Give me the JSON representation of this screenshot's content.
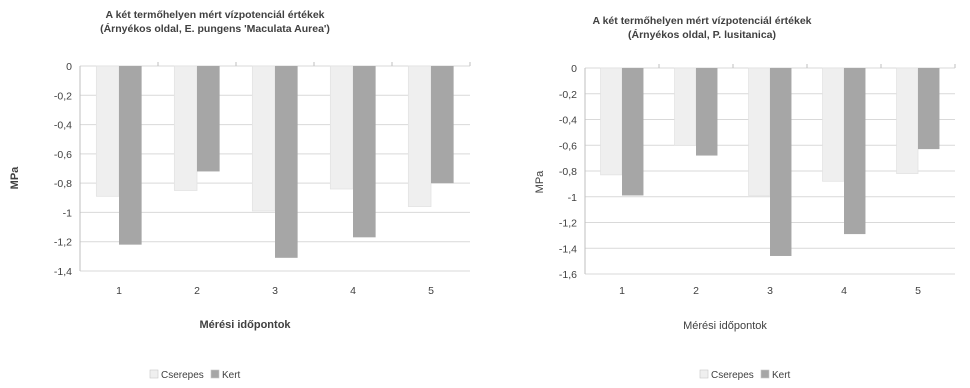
{
  "chart_data": [
    {
      "type": "bar",
      "title_line1": "A két termőhelyen mért vízpotenciál értékek",
      "title_line2": "(Árnyékos oldal, E. pungens 'Maculata Aurea')",
      "xlabel": "Mérési időpontok",
      "ylabel": "MPa",
      "categories": [
        "1",
        "2",
        "3",
        "4",
        "5"
      ],
      "y_ticks": [
        0,
        -0.2,
        -0.4,
        -0.6,
        -0.8,
        -1,
        -1.2,
        -1.4
      ],
      "y_tick_labels": [
        "0",
        "-0,2",
        "-0,4",
        "-0,6",
        "-0,8",
        "-1",
        "-1,2",
        "-1,4"
      ],
      "ylim": [
        -1.4,
        0
      ],
      "grid": true,
      "legend_position": "bottom",
      "series": [
        {
          "name": "Cserepes",
          "color": "#efefef",
          "values": [
            -0.89,
            -0.85,
            -0.99,
            -0.84,
            -0.96
          ]
        },
        {
          "name": "Kert",
          "color": "#a6a6a6",
          "values": [
            -1.22,
            -0.72,
            -1.31,
            -1.17,
            -0.8
          ]
        }
      ]
    },
    {
      "type": "bar",
      "title_line1": "A két termőhelyen mért vízpotenciál értékek",
      "title_line2": "(Árnyékos oldal, P. lusitanica)",
      "xlabel": "Mérési időpontok",
      "ylabel": "MPa",
      "categories": [
        "1",
        "2",
        "3",
        "4",
        "5"
      ],
      "y_ticks": [
        0,
        -0.2,
        -0.4,
        -0.6,
        -0.8,
        -1,
        -1.2,
        -1.4,
        -1.6
      ],
      "y_tick_labels": [
        "0",
        "-0,2",
        "-0,4",
        "-0,6",
        "-0,8",
        "-1",
        "-1,2",
        "-1,4",
        "-1,6"
      ],
      "ylim": [
        -1.6,
        0
      ],
      "grid": true,
      "legend_position": "bottom",
      "series": [
        {
          "name": "Cserepes",
          "color": "#efefef",
          "values": [
            -0.83,
            -0.6,
            -0.99,
            -0.88,
            -0.82
          ]
        },
        {
          "name": "Kert",
          "color": "#a6a6a6",
          "values": [
            -0.99,
            -0.68,
            -1.46,
            -1.29,
            -0.63
          ]
        }
      ]
    }
  ]
}
